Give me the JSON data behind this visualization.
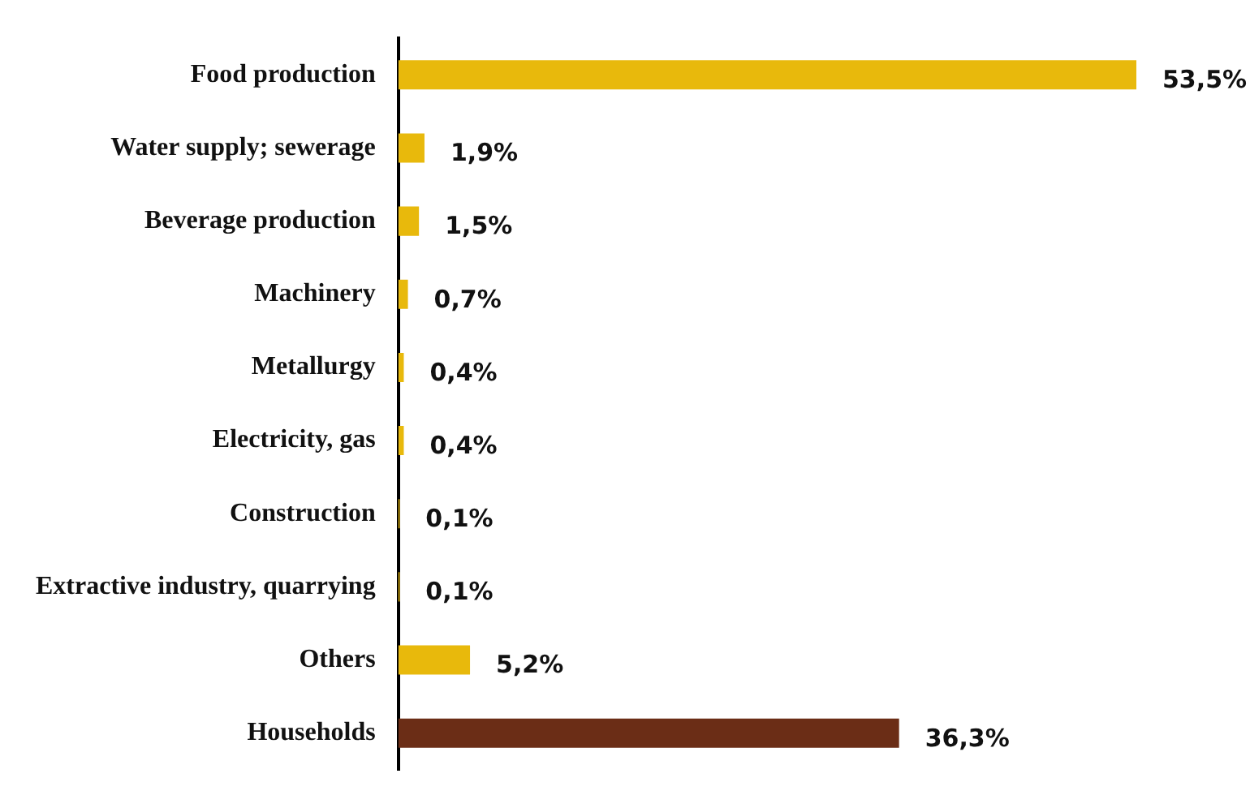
{
  "chart_data": {
    "type": "bar",
    "orientation": "horizontal",
    "categories": [
      "Food production",
      "Water supply; sewerage",
      "Beverage production",
      "Machinery",
      "Metallurgy",
      "Electricity, gas",
      "Construction",
      "Extractive industry, quarrying",
      "Others",
      "Households"
    ],
    "values": [
      53.5,
      1.9,
      1.5,
      0.7,
      0.4,
      0.4,
      0.1,
      0.1,
      5.2,
      36.3
    ],
    "colors": [
      "#e8b90c",
      "#e8b90c",
      "#e8b90c",
      "#e8b90c",
      "#e8b90c",
      "#e8b90c",
      "#e8b90c",
      "#e8b90c",
      "#e8b90c",
      "#6b2d16"
    ],
    "value_labels": [
      "53,5%",
      "1,9%",
      "1,5%",
      "0,7%",
      "0,4%",
      "0,4%",
      "0,1%",
      "0,1%",
      "5,2%",
      "36,3%"
    ],
    "legend": false
  }
}
